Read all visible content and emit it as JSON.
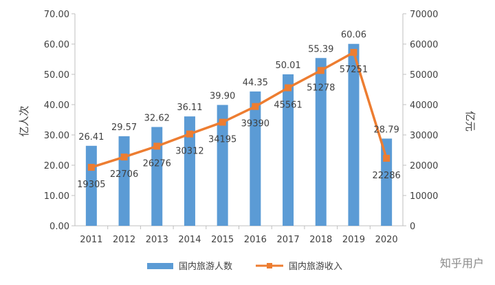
{
  "chart_data": {
    "type": "bar",
    "categories": [
      "2011",
      "2012",
      "2013",
      "2014",
      "2015",
      "2016",
      "2017",
      "2018",
      "2019",
      "2020"
    ],
    "series": [
      {
        "name": "国内旅游人数",
        "type": "bar",
        "axis": "left",
        "color": "#5b9bd5",
        "values": [
          26.41,
          29.57,
          32.62,
          36.11,
          39.9,
          44.35,
          50.01,
          55.39,
          60.06,
          28.79
        ],
        "labels": [
          "26.41",
          "29.57",
          "32.62",
          "36.11",
          "39.90",
          "44.35",
          "50.01",
          "55.39",
          "60.06",
          "28.79"
        ]
      },
      {
        "name": "国内旅游收入",
        "type": "line",
        "axis": "right",
        "color": "#ed7d31",
        "values": [
          19305,
          22706,
          26276,
          30312,
          34195,
          39390,
          45561,
          51278,
          57251,
          22286
        ],
        "labels": [
          "19305",
          "22706",
          "26276",
          "30312",
          "34195",
          "39390",
          "45561",
          "51278",
          "57251",
          "22286"
        ]
      }
    ],
    "ylabel": "亿人次",
    "y2label": "亿元",
    "ylim": [
      0,
      70
    ],
    "y2lim": [
      0,
      70000
    ],
    "yticks": [
      "0.00",
      "10.00",
      "20.00",
      "30.00",
      "40.00",
      "50.00",
      "60.00",
      "70.00"
    ],
    "y2ticks": [
      "0",
      "10000",
      "20000",
      "30000",
      "40000",
      "50000",
      "60000",
      "70000"
    ],
    "legend_position": "bottom",
    "grid": false
  },
  "watermark": "知乎用户"
}
